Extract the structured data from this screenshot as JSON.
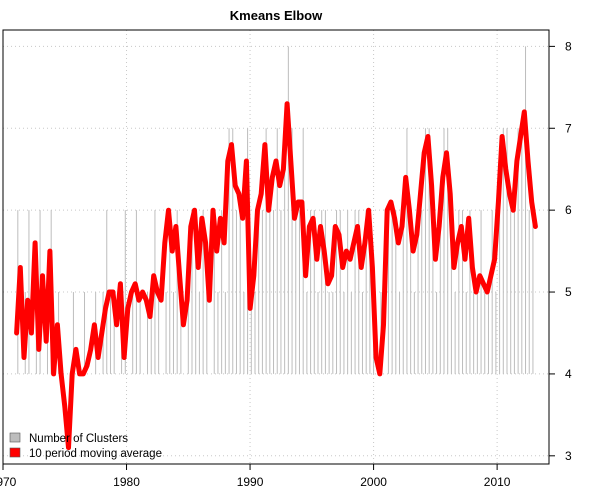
{
  "chart_data": {
    "type": "line",
    "title": "Kmeans Elbow",
    "xlabel": "",
    "ylabel": "",
    "xlim": [
      1970.0,
      2014.2
    ],
    "ylim": [
      2.9,
      8.2
    ],
    "x_ticks": [
      1970,
      1980,
      1990,
      2000,
      2010
    ],
    "y_ticks": [
      3,
      4,
      5,
      6,
      7,
      8
    ],
    "x_tick_labels": [
      "1970",
      "1980",
      "1990",
      "2000",
      "2010"
    ],
    "y_tick_labels": [
      "3",
      "4",
      "5",
      "6",
      "7",
      "8"
    ],
    "y_axis_side": "right",
    "grid": true,
    "legend_position": "bottom-left",
    "colors": {
      "clusters": "#bdbdbd",
      "moving_average": "#ff0000",
      "grid": "#c8c8c8"
    },
    "series": [
      {
        "name": "Number of Clusters",
        "style": "vertical-lines",
        "x": [
          1971.2,
          1971.5,
          1971.8,
          1972.1,
          1972.4,
          1972.7,
          1973.0,
          1973.3,
          1973.6,
          1973.9,
          1974.2,
          1974.5,
          1974.8,
          1975.1,
          1975.4,
          1975.7,
          1976.0,
          1976.3,
          1976.6,
          1976.9,
          1977.2,
          1977.5,
          1977.8,
          1978.1,
          1978.4,
          1978.7,
          1979.0,
          1979.3,
          1979.6,
          1979.9,
          1980.2,
          1980.5,
          1980.8,
          1981.1,
          1981.4,
          1981.7,
          1982.0,
          1982.3,
          1982.6,
          1982.9,
          1983.2,
          1983.5,
          1983.8,
          1984.1,
          1984.4,
          1984.7,
          1985.0,
          1985.3,
          1985.6,
          1985.9,
          1986.2,
          1986.5,
          1986.8,
          1987.1,
          1987.4,
          1987.7,
          1988.0,
          1988.3,
          1988.6,
          1988.9,
          1989.2,
          1989.5,
          1989.8,
          1990.1,
          1990.4,
          1990.7,
          1991.0,
          1991.3,
          1991.6,
          1991.9,
          1992.2,
          1992.5,
          1992.8,
          1993.1,
          1993.4,
          1993.7,
          1994.0,
          1994.3,
          1994.6,
          1994.9,
          1995.2,
          1995.5,
          1995.8,
          1996.1,
          1996.4,
          1996.7,
          1997.0,
          1997.3,
          1997.6,
          1997.9,
          1998.2,
          1998.5,
          1998.8,
          1999.1,
          1999.4,
          1999.7,
          2000.0,
          2000.3,
          2000.6,
          2000.9,
          2001.2,
          2001.5,
          2001.8,
          2002.1,
          2002.4,
          2002.7,
          2003.0,
          2003.3,
          2003.6,
          2003.9,
          2004.2,
          2004.5,
          2004.8,
          2005.1,
          2005.4,
          2005.7,
          2006.0,
          2006.3,
          2006.6,
          2006.9,
          2007.2,
          2007.5,
          2007.8,
          2008.1,
          2008.4,
          2008.7,
          2009.0,
          2009.3,
          2009.6,
          2009.9,
          2010.2,
          2010.5,
          2010.8,
          2011.1,
          2011.4,
          2011.7,
          2012.0,
          2012.3,
          2012.6,
          2012.9
        ],
        "values": [
          6,
          4,
          5,
          6,
          4,
          5,
          6,
          4,
          5,
          6,
          4,
          5,
          4,
          3,
          4,
          5,
          4,
          4,
          5,
          4,
          4,
          5,
          4,
          5,
          6,
          5,
          5,
          4,
          5,
          6,
          4,
          5,
          6,
          5,
          4,
          5,
          5,
          6,
          5,
          4,
          5,
          6,
          5,
          6,
          5,
          4,
          5,
          6,
          6,
          5,
          6,
          5,
          4,
          6,
          5,
          6,
          5,
          7,
          7,
          6,
          6,
          5,
          7,
          5,
          5,
          6,
          6,
          7,
          6,
          6,
          7,
          6,
          7,
          8,
          7,
          6,
          6,
          7,
          5,
          6,
          6,
          5,
          6,
          6,
          5,
          5,
          6,
          6,
          5,
          6,
          5,
          6,
          6,
          5,
          6,
          6,
          5,
          4,
          5,
          4,
          6,
          6,
          6,
          5,
          6,
          7,
          6,
          5,
          6,
          6,
          7,
          7,
          6,
          5,
          6,
          7,
          7,
          6,
          5,
          6,
          6,
          5,
          6,
          5,
          5,
          6,
          5,
          5,
          6,
          5,
          6,
          7,
          7,
          6,
          6,
          7,
          7,
          8,
          6,
          6
        ]
      },
      {
        "name": "10 period moving average",
        "style": "thick-line",
        "x": [
          1971.1,
          1971.4,
          1971.7,
          1972.0,
          1972.3,
          1972.6,
          1972.9,
          1973.2,
          1973.5,
          1973.8,
          1974.1,
          1974.4,
          1974.7,
          1975.0,
          1975.3,
          1975.6,
          1975.9,
          1976.2,
          1976.5,
          1976.8,
          1977.1,
          1977.4,
          1977.7,
          1978.0,
          1978.3,
          1978.6,
          1978.9,
          1979.2,
          1979.5,
          1979.8,
          1980.1,
          1980.4,
          1980.7,
          1981.0,
          1981.3,
          1981.6,
          1981.9,
          1982.2,
          1982.5,
          1982.8,
          1983.1,
          1983.4,
          1983.7,
          1984.0,
          1984.3,
          1984.6,
          1984.9,
          1985.2,
          1985.5,
          1985.8,
          1986.1,
          1986.4,
          1986.7,
          1987.0,
          1987.3,
          1987.6,
          1987.9,
          1988.2,
          1988.5,
          1988.8,
          1989.1,
          1989.4,
          1989.7,
          1990.0,
          1990.3,
          1990.6,
          1990.9,
          1991.2,
          1991.5,
          1991.8,
          1992.1,
          1992.4,
          1992.7,
          1993.0,
          1993.3,
          1993.6,
          1993.9,
          1994.2,
          1994.5,
          1994.8,
          1995.1,
          1995.4,
          1995.7,
          1996.0,
          1996.3,
          1996.6,
          1996.9,
          1997.2,
          1997.5,
          1997.8,
          1998.1,
          1998.4,
          1998.7,
          1999.0,
          1999.3,
          1999.6,
          1999.9,
          2000.2,
          2000.5,
          2000.8,
          2001.1,
          2001.4,
          2001.7,
          2002.0,
          2002.3,
          2002.6,
          2002.9,
          2003.2,
          2003.5,
          2003.8,
          2004.1,
          2004.4,
          2004.7,
          2005.0,
          2005.3,
          2005.6,
          2005.9,
          2006.2,
          2006.5,
          2006.8,
          2007.1,
          2007.4,
          2007.7,
          2008.0,
          2008.3,
          2008.6,
          2008.9,
          2009.2,
          2009.5,
          2009.8,
          2010.1,
          2010.4,
          2010.7,
          2011.0,
          2011.3,
          2011.6,
          2011.9,
          2012.2,
          2012.5,
          2012.8,
          2013.1
        ],
        "values": [
          4.5,
          5.3,
          4.2,
          4.9,
          4.5,
          5.6,
          4.3,
          5.2,
          4.4,
          5.5,
          4.0,
          4.6,
          4.0,
          3.6,
          3.1,
          4.0,
          4.3,
          4.0,
          4.0,
          4.1,
          4.3,
          4.6,
          4.2,
          4.5,
          4.8,
          5.0,
          5.0,
          4.6,
          5.1,
          4.2,
          4.8,
          5.0,
          5.1,
          4.9,
          5.0,
          4.9,
          4.7,
          5.2,
          5.0,
          4.9,
          5.6,
          6.0,
          5.5,
          5.8,
          5.2,
          4.6,
          4.9,
          5.8,
          6.0,
          5.3,
          5.9,
          5.6,
          4.9,
          6.0,
          5.5,
          5.9,
          5.6,
          6.6,
          6.8,
          6.3,
          6.2,
          5.9,
          6.6,
          4.8,
          5.2,
          6.0,
          6.2,
          6.8,
          6.0,
          6.4,
          6.6,
          6.3,
          6.5,
          7.3,
          6.6,
          5.9,
          6.1,
          6.1,
          5.2,
          5.8,
          5.9,
          5.4,
          5.8,
          5.5,
          5.1,
          5.2,
          5.8,
          5.7,
          5.3,
          5.5,
          5.4,
          5.6,
          5.8,
          5.3,
          5.6,
          6.0,
          5.3,
          4.2,
          4.0,
          4.6,
          6.0,
          6.1,
          5.9,
          5.6,
          5.8,
          6.4,
          6.0,
          5.5,
          5.7,
          6.2,
          6.7,
          6.9,
          6.3,
          5.4,
          5.8,
          6.4,
          6.7,
          6.2,
          5.3,
          5.6,
          5.8,
          5.4,
          5.9,
          5.3,
          5.0,
          5.2,
          5.1,
          5.0,
          5.2,
          5.4,
          6.1,
          6.9,
          6.5,
          6.2,
          6.0,
          6.6,
          6.9,
          7.2,
          6.6,
          6.1,
          5.8
        ]
      }
    ]
  },
  "legend": {
    "items": [
      {
        "label": "Number of Clusters",
        "color": "#bdbdbd"
      },
      {
        "label": "10 period moving average",
        "color": "#ff0000"
      }
    ]
  }
}
